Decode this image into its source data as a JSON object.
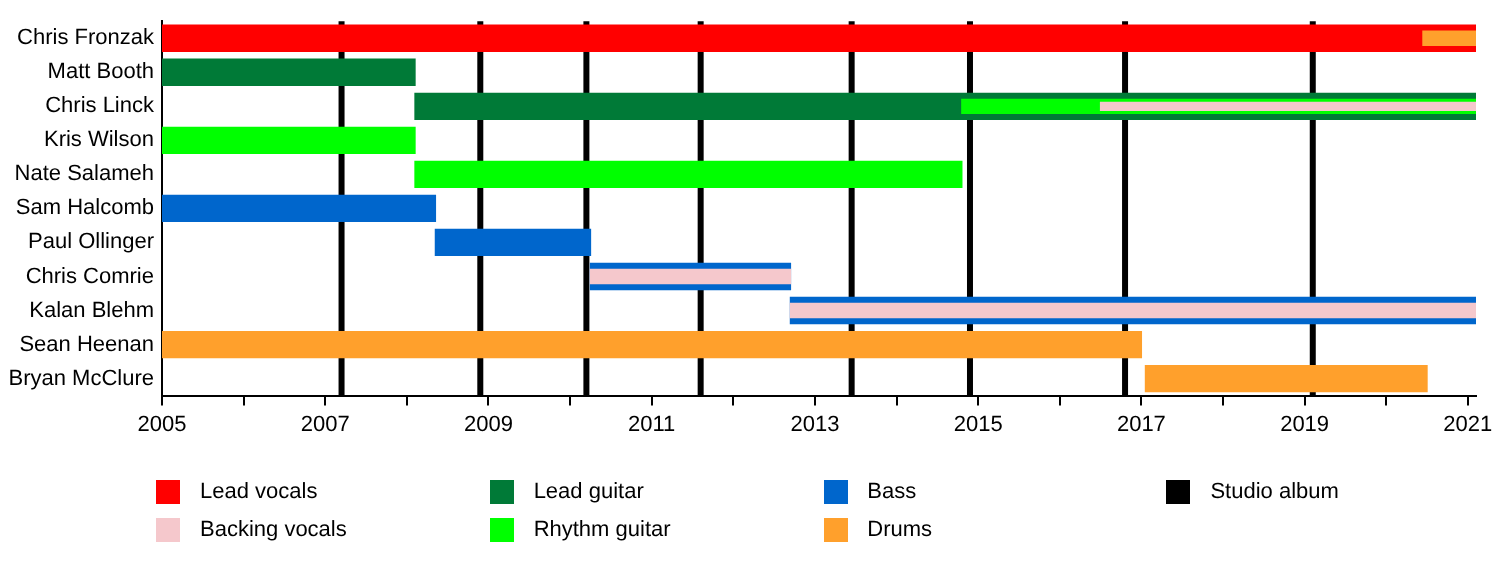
{
  "chart_data": {
    "type": "bar",
    "orientation": "horizontal",
    "categories": [
      "Chris Fronzak",
      "Matt Booth",
      "Chris Linck",
      "Kris Wilson",
      "Nate Salameh",
      "Sam Halcomb",
      "Paul Ollinger",
      "Chris Comrie",
      "Kalan Blehm",
      "Sean Heenan",
      "Bryan McClure"
    ],
    "series": [
      {
        "name": "Lead vocals",
        "color": "#ff0000",
        "values": [
          16.1,
          null,
          null,
          null,
          null,
          null,
          null,
          null,
          null,
          null,
          null
        ],
        "base": [
          2005,
          null,
          null,
          null,
          null,
          null,
          null,
          null,
          null,
          null,
          null
        ]
      },
      {
        "name": "Backing vocals",
        "color": "#f5c8cc",
        "values": [
          null,
          null,
          4.6,
          null,
          null,
          null,
          null,
          2.45,
          8.4,
          null,
          null
        ],
        "base": [
          null,
          null,
          2016.5,
          null,
          null,
          null,
          null,
          2010.25,
          2012.7,
          null,
          null
        ]
      },
      {
        "name": "Lead guitar",
        "color": "#007a37",
        "values": [
          null,
          3.1,
          13.0,
          null,
          null,
          null,
          null,
          null,
          null,
          null,
          null
        ],
        "base": [
          null,
          2005,
          2008.1,
          null,
          null,
          null,
          null,
          null,
          null,
          null,
          null
        ]
      },
      {
        "name": "Rhythm guitar",
        "color": "#00ff00",
        "values": [
          null,
          null,
          6.3,
          3.1,
          6.7,
          null,
          null,
          null,
          null,
          null,
          null
        ],
        "base": [
          null,
          null,
          2014.8,
          2005,
          2008.1,
          null,
          null,
          null,
          null,
          null,
          null
        ]
      },
      {
        "name": "Bass",
        "color": "#0066cc",
        "values": [
          null,
          null,
          null,
          null,
          null,
          3.35,
          1.9,
          2.45,
          8.4,
          null,
          null
        ],
        "base": [
          null,
          null,
          null,
          null,
          null,
          2005,
          2008.35,
          2010.25,
          2012.7,
          null,
          null
        ]
      },
      {
        "name": "Drums",
        "color": "#ffa02c",
        "values": [
          0.65,
          null,
          null,
          null,
          null,
          null,
          null,
          null,
          null,
          12.0,
          3.45
        ],
        "base": [
          2020.45,
          null,
          null,
          null,
          null,
          null,
          null,
          null,
          null,
          2005,
          2017.05
        ]
      }
    ],
    "xlim": [
      2005,
      2021.1
    ],
    "xticks": [
      2005,
      {
        "value": 2006,
        "label": null
      },
      2007,
      {
        "value": 2008,
        "label": null
      },
      2009,
      {
        "value": 2010,
        "label": null
      },
      2011,
      {
        "value": 2012,
        "label": null
      },
      2013,
      {
        "value": 2014,
        "label": null
      },
      2015,
      {
        "value": 2016,
        "label": null
      },
      2017,
      {
        "value": 2018,
        "label": null
      },
      2019,
      {
        "value": 2020,
        "label": null
      },
      2021
    ],
    "ref_lines": [
      {
        "axis": "x",
        "value": 2007.2,
        "label": "Studio album",
        "color": "#000000"
      },
      {
        "axis": "x",
        "value": 2008.9,
        "color": "#000000"
      },
      {
        "axis": "x",
        "value": 2010.2,
        "color": "#000000"
      },
      {
        "axis": "x",
        "value": 2011.6,
        "color": "#000000"
      },
      {
        "axis": "x",
        "value": 2013.45,
        "color": "#000000"
      },
      {
        "axis": "x",
        "value": 2014.9,
        "color": "#000000"
      },
      {
        "axis": "x",
        "value": 2016.8,
        "color": "#000000"
      },
      {
        "axis": "x",
        "value": 2019.1,
        "color": "#000000"
      }
    ],
    "grid": false,
    "legend": "bottom"
  }
}
